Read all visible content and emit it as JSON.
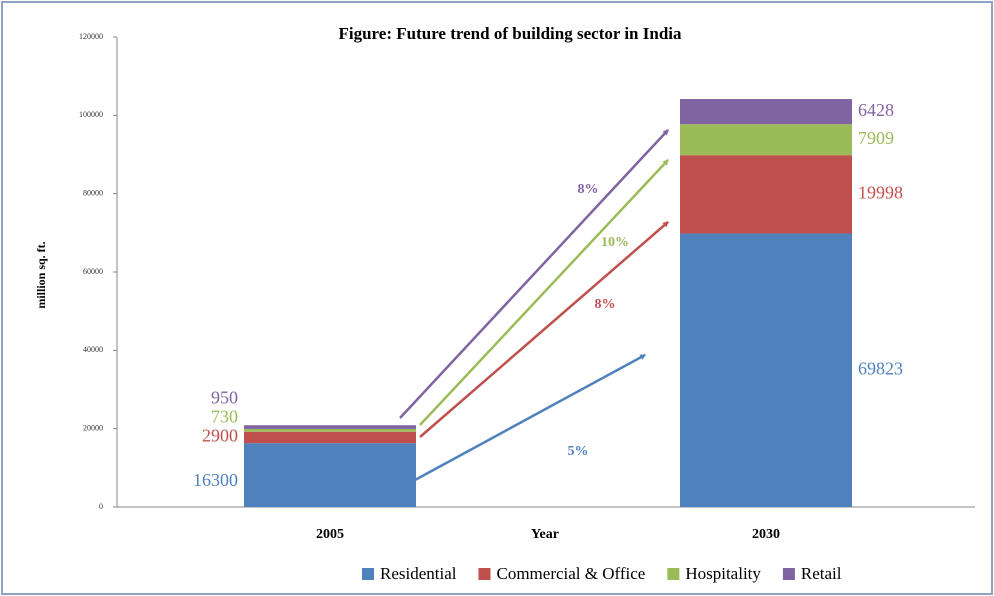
{
  "chart_data": {
    "type": "stacked_bar",
    "title": "Figure: Future trend of building sector in India",
    "y_label": "million sq. ft.",
    "x_label": "Year",
    "categories": [
      "2005",
      "2030"
    ],
    "series": [
      {
        "name": "Residential",
        "color": "#4f81bd",
        "values": [
          16300,
          69823
        ],
        "growth_label": "5%"
      },
      {
        "name": "Commercial & Office",
        "color": "#c0504d",
        "values": [
          2900,
          19998
        ],
        "growth_label": "8%"
      },
      {
        "name": "Hospitality",
        "color": "#9bbb59",
        "values": [
          730,
          7909
        ],
        "growth_label": "10%"
      },
      {
        "name": "Retail",
        "color": "#8064a2",
        "values": [
          950,
          6428
        ],
        "growth_label": "8%"
      }
    ],
    "ylim": [
      0,
      120000
    ],
    "yticks": [
      0,
      20000,
      40000,
      60000,
      80000,
      100000,
      120000
    ],
    "grid": false,
    "legend": "bottom"
  }
}
